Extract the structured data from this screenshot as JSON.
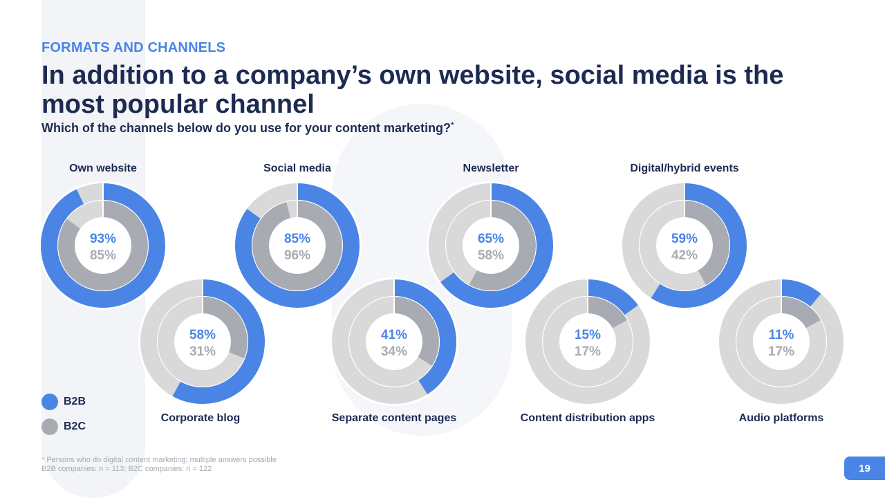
{
  "eyebrow": "FORMATS AND CHANNELS",
  "title": "In addition to a company’s own website, social media is the most popular channel",
  "subtitle": "Which of the channels below do you use for your content marketing?",
  "subtitle_mark": "*",
  "colors": {
    "b2b": "#4a85e6",
    "b2c": "#a8abb2",
    "track": "#d9d9d9",
    "navy": "#1d2a52"
  },
  "legend": [
    {
      "label": "B2B",
      "color": "#4a85e6"
    },
    {
      "label": "B2C",
      "color": "#a8abb2"
    }
  ],
  "chart_data": {
    "type": "donut",
    "series": [
      {
        "name": "B2B",
        "ring": "outer"
      },
      {
        "name": "B2C",
        "ring": "inner"
      }
    ],
    "categories": [
      {
        "label": "Own website",
        "b2b": 93,
        "b2c": 85,
        "b2b_label": "93%",
        "b2c_label": "85%"
      },
      {
        "label": "Social media",
        "b2b": 85,
        "b2c": 96,
        "b2b_label": "85%",
        "b2c_label": "96%"
      },
      {
        "label": "Newsletter",
        "b2b": 65,
        "b2c": 58,
        "b2b_label": "65%",
        "b2c_label": "58%"
      },
      {
        "label": "Digital/hybrid events",
        "b2b": 59,
        "b2c": 42,
        "b2b_label": "59%",
        "b2c_label": "42%"
      },
      {
        "label": "Corporate blog",
        "b2b": 58,
        "b2c": 31,
        "b2b_label": "58%",
        "b2c_label": "31%"
      },
      {
        "label": "Separate content pages",
        "b2b": 41,
        "b2c": 34,
        "b2b_label": "41%",
        "b2c_label": "34%"
      },
      {
        "label": "Content distribution apps",
        "b2b": 15,
        "b2c": 17,
        "b2b_label": "15%",
        "b2c_label": "17%"
      },
      {
        "label": "Audio platforms",
        "b2b": 11,
        "b2c": 17,
        "b2b_label": "11%",
        "b2c_label": "17%"
      }
    ]
  },
  "footnote": {
    "line1": "* Persons who do digital content marketing; multiple answers possible",
    "line2": "B2B companies: n = 113; B2C companies: n = 122"
  },
  "page_number": "19"
}
